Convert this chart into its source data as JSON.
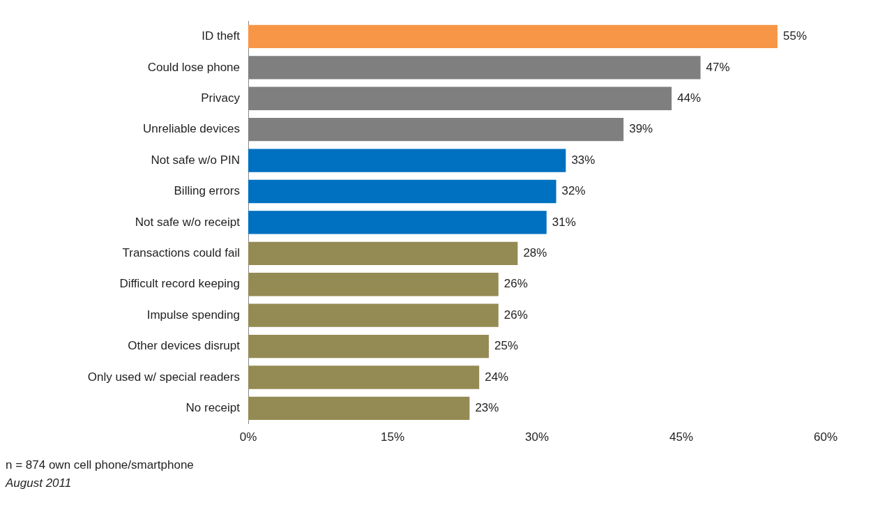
{
  "chart_data": {
    "type": "bar",
    "orientation": "horizontal",
    "categories": [
      "ID theft",
      "Could lose phone",
      "Privacy",
      "Unreliable devices",
      "Not safe w/o PIN",
      "Billing errors",
      "Not safe w/o receipt",
      "Transactions could fail",
      "Difficult record keeping",
      "Impulse spending",
      "Other devices disrupt",
      "Only used w/ special readers",
      "No receipt"
    ],
    "values": [
      55,
      47,
      44,
      39,
      33,
      32,
      31,
      28,
      26,
      26,
      25,
      24,
      23
    ],
    "value_labels": [
      "55%",
      "47%",
      "44%",
      "39%",
      "33%",
      "32%",
      "31%",
      "28%",
      "26%",
      "26%",
      "25%",
      "24%",
      "23%"
    ],
    "colors": [
      "#f79646",
      "#7f7f7f",
      "#7f7f7f",
      "#7f7f7f",
      "#0070c0",
      "#0070c0",
      "#0070c0",
      "#948a54",
      "#948a54",
      "#948a54",
      "#948a54",
      "#948a54",
      "#948a54"
    ],
    "xlim": [
      0,
      60
    ],
    "xticks": [
      {
        "value": 0,
        "label": "0%"
      },
      {
        "value": 15,
        "label": "15%"
      },
      {
        "value": 30,
        "label": "30%"
      },
      {
        "value": 45,
        "label": "45%"
      },
      {
        "value": 60,
        "label": "60%"
      }
    ],
    "grid": false,
    "legend": false,
    "annotations": [
      "n = 874 own cell phone/smartphone",
      "August 2011"
    ]
  }
}
